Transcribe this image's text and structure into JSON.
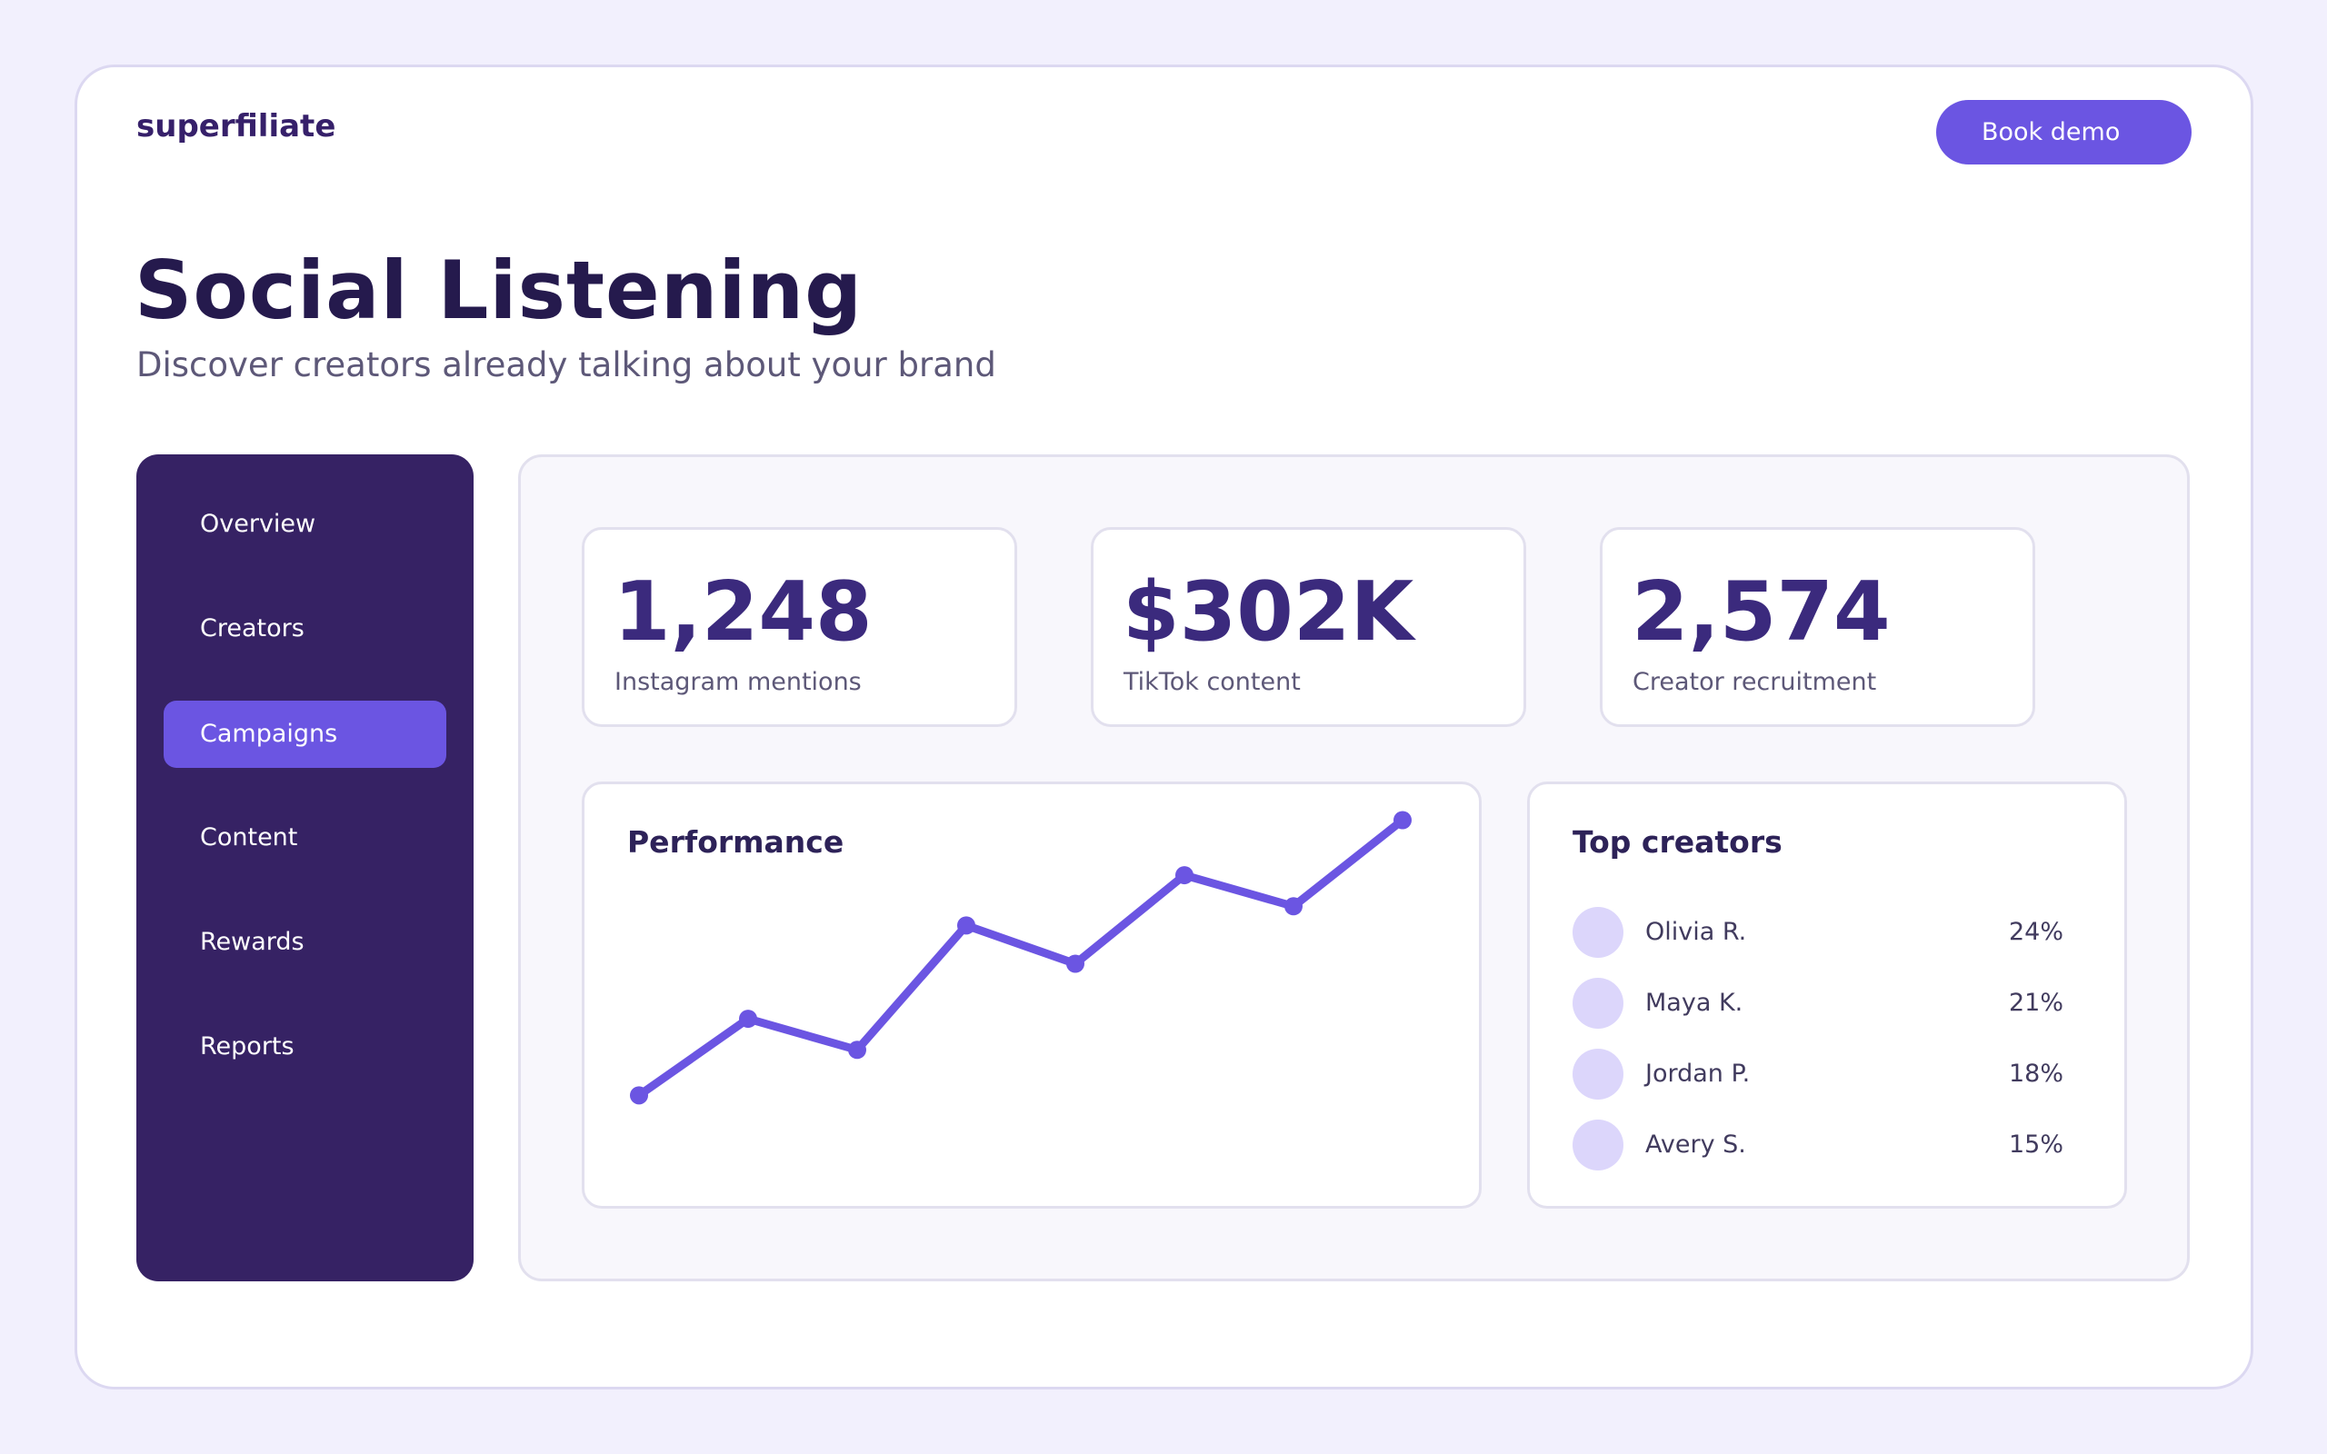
{
  "app": {
    "logo": "superfiliate",
    "cta_label": "Book demo"
  },
  "page": {
    "title": "Social Listening",
    "subtitle": "Discover creators already talking about your brand"
  },
  "sidebar": {
    "items": [
      {
        "label": "Overview",
        "active": false
      },
      {
        "label": "Creators",
        "active": false
      },
      {
        "label": "Campaigns",
        "active": true
      },
      {
        "label": "Content",
        "active": false
      },
      {
        "label": "Rewards",
        "active": false
      },
      {
        "label": "Reports",
        "active": false
      }
    ]
  },
  "stats": [
    {
      "value": "1,248",
      "label": "Instagram mentions"
    },
    {
      "value": "$302K",
      "label": "TikTok content"
    },
    {
      "value": "2,574",
      "label": "Creator recruitment"
    }
  ],
  "performance": {
    "title": "Performance"
  },
  "top_creators": {
    "title": "Top creators",
    "items": [
      {
        "name": "Olivia R.",
        "share": "24%"
      },
      {
        "name": "Maya K.",
        "share": "21%"
      },
      {
        "name": "Jordan P.",
        "share": "18%"
      },
      {
        "name": "Avery S.",
        "share": "15%"
      }
    ]
  },
  "colors": {
    "accent": "#6b55e2",
    "sidebar_bg": "#362264",
    "avatar": "#dcd6fb"
  },
  "chart_data": {
    "type": "line",
    "title": "Performance",
    "x": [
      1,
      2,
      3,
      4,
      5,
      6,
      7,
      8
    ],
    "series": [
      {
        "values": [
          20,
          52,
          39,
          91,
          75,
          112,
          99,
          135
        ]
      }
    ],
    "ylim": [
      0,
      150
    ],
    "grid": false,
    "legend": "none"
  }
}
